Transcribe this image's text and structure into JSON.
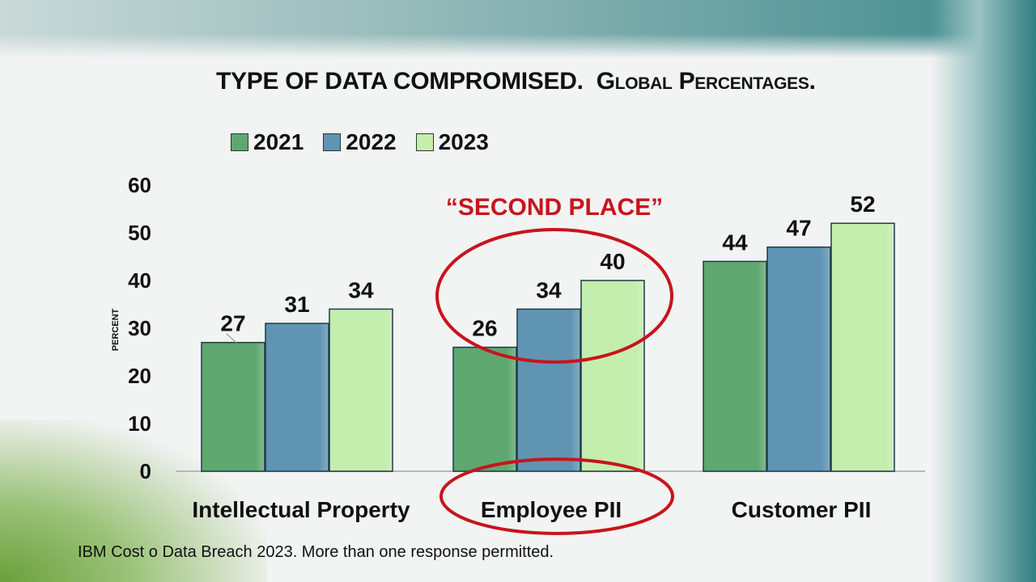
{
  "title": {
    "main": "TYPE OF DATA COMPROMISED.",
    "sub": "Global Percentages."
  },
  "footnote": "IBM Cost o Data Breach 2023.  More than one response permitted.",
  "annotation": "“SECOND PLACE”",
  "colors": {
    "2021": "#5ea86f",
    "2022": "#5f95b3",
    "2023": "#c4eeae",
    "annotation": "#c8141c"
  },
  "chart_data": {
    "type": "bar",
    "categories": [
      "Intellectual Property",
      "Employee PII",
      "Customer PII"
    ],
    "series": [
      {
        "name": "2021",
        "values": [
          27,
          26,
          44
        ]
      },
      {
        "name": "2022",
        "values": [
          31,
          34,
          47
        ]
      },
      {
        "name": "2023",
        "values": [
          34,
          40,
          52
        ]
      }
    ],
    "ylabel": "PERCENT",
    "ylim": [
      0,
      60
    ],
    "yticks": [
      0,
      10,
      20,
      30,
      40,
      50,
      60
    ],
    "grid": false,
    "legend_position": "top"
  }
}
